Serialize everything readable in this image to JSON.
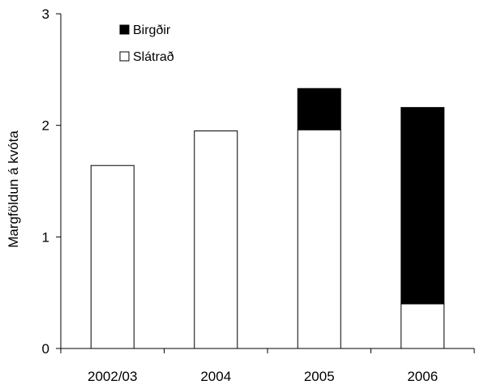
{
  "chart_data": {
    "type": "bar",
    "stacked": true,
    "title": "",
    "xlabel": "",
    "ylabel": "Margföldun á kvóta",
    "categories": [
      "2002/03",
      "2004",
      "2005",
      "2006"
    ],
    "series": [
      {
        "name": "Slátrað",
        "values": [
          1.64,
          1.95,
          1.96,
          0.4
        ],
        "color": "#ffffff"
      },
      {
        "name": "Birgðir",
        "values": [
          0,
          0,
          0.37,
          1.76
        ],
        "color": "#000000"
      }
    ],
    "ylim": [
      0,
      3
    ],
    "yticks": [
      "0",
      "1",
      "2",
      "3"
    ],
    "grid": false,
    "legend_position": "top-left",
    "legend_order": [
      1,
      0
    ]
  }
}
